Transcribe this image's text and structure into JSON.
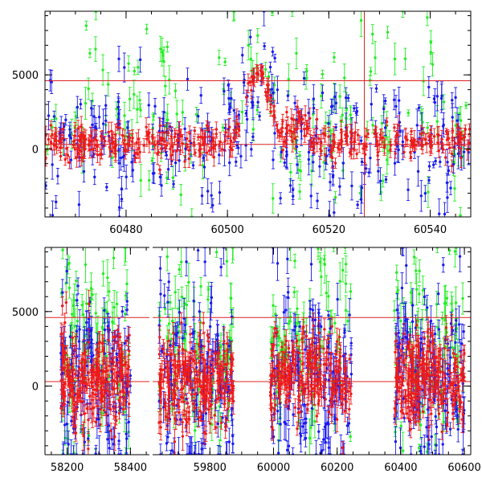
{
  "colors": {
    "green": "#22ee22",
    "blue": "#1a1aee",
    "red": "#ee1a1a",
    "refline": "#dd2222",
    "axis": "#000000"
  },
  "chart_data": [
    {
      "type": "scatter",
      "panel": "top",
      "x_ticks": [
        "60480",
        "60500",
        "60520",
        "60540"
      ],
      "x_tick_values": [
        60480,
        60500,
        60520,
        60540
      ],
      "y_ticks": [
        "0",
        "5000"
      ],
      "y_tick_values": [
        0,
        5000
      ],
      "xlim": [
        60464,
        60548
      ],
      "ylim": [
        -4600,
        9300
      ],
      "reference_lines_y": [
        4600,
        300
      ],
      "reference_line_x": 60527,
      "error_bars": true,
      "series": [
        {
          "color": "green",
          "x_range": [
            60464,
            60548
          ],
          "baseline": 2200,
          "spread": 3000,
          "n": 170,
          "features": [
            {
              "x": 60470,
              "amp": 2000,
              "w": 6
            },
            {
              "x": 60506,
              "amp": 3000,
              "w": 4
            },
            {
              "x": 60537,
              "amp": 2000,
              "w": 5
            }
          ]
        },
        {
          "color": "blue",
          "x_range": [
            60464,
            60548
          ],
          "baseline": 200,
          "spread": 2200,
          "n": 300,
          "features": [
            {
              "x": 60506,
              "amp": 4800,
              "w": 3
            }
          ]
        },
        {
          "color": "red",
          "x_range": [
            60464,
            60548
          ],
          "baseline": 400,
          "spread": 700,
          "n": 420,
          "features": [
            {
              "x": 60506,
              "amp": 4800,
              "w": 3.2
            },
            {
              "x": 60514,
              "amp": 1400,
              "w": 2
            }
          ]
        }
      ]
    },
    {
      "type": "scatter",
      "panel": "bottom",
      "x_ticks": [
        "58200",
        "58400",
        "59800",
        "60000",
        "60200",
        "60400",
        "60600"
      ],
      "x_tick_values": [
        58200,
        58400,
        59800,
        60000,
        60200,
        60400,
        60600
      ],
      "y_ticks": [
        "0",
        "5000"
      ],
      "y_tick_values": [
        0,
        5000
      ],
      "segments": [
        {
          "xlim": [
            58130,
            58460
          ]
        },
        {
          "xlim": [
            59620,
            60620
          ]
        }
      ],
      "ylim": [
        -4600,
        9300
      ],
      "reference_lines_y": [
        4600,
        300
      ],
      "error_bars": true,
      "observing_seasons": [
        [
          58180,
          58400
        ],
        [
          59640,
          59875
        ],
        [
          59990,
          60245
        ],
        [
          60380,
          60600
        ]
      ],
      "series": [
        {
          "color": "green",
          "baseline": 2500,
          "spread": 3500,
          "n": 380
        },
        {
          "color": "blue",
          "baseline": 300,
          "spread": 3200,
          "n": 620
        },
        {
          "color": "red",
          "baseline": 500,
          "spread": 1500,
          "n": 900
        }
      ]
    }
  ]
}
